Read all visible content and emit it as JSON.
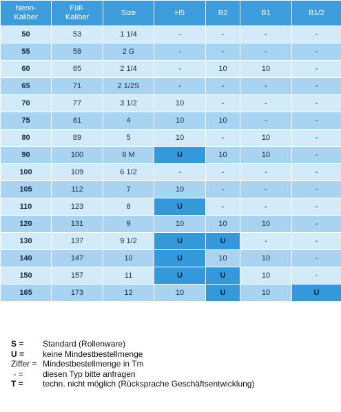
{
  "table": {
    "header": [
      "Nenn-\nKaliber",
      "Füll-\nKaliber",
      "Size",
      "H5",
      "B2",
      "B1",
      "B1/2"
    ],
    "rows": [
      [
        "50",
        "53",
        "1 1/4",
        "-",
        "-",
        "-",
        "-"
      ],
      [
        "55",
        "58",
        "2 G",
        "-",
        "-",
        "-",
        "-"
      ],
      [
        "60",
        "65",
        "2 1/4",
        "-",
        "10",
        "10",
        "-"
      ],
      [
        "65",
        "71",
        "2 1/2S",
        "-",
        "-",
        "-",
        "-"
      ],
      [
        "70",
        "77",
        "3 1/2",
        "10",
        "-",
        "-",
        "-"
      ],
      [
        "75",
        "81",
        "4",
        "10",
        "10",
        "-",
        "-"
      ],
      [
        "80",
        "89",
        "5",
        "10",
        "-",
        "10",
        "-"
      ],
      [
        "90",
        "100",
        "6 M",
        "U",
        "10",
        "10",
        "-"
      ],
      [
        "100",
        "109",
        "6 1/2",
        "-",
        "-",
        "-",
        "-"
      ],
      [
        "105",
        "112",
        "7",
        "10",
        "-",
        "-",
        "-"
      ],
      [
        "110",
        "123",
        "8",
        "U",
        "-",
        "-",
        "-"
      ],
      [
        "120",
        "131",
        "9",
        "10",
        "10",
        "10",
        "-"
      ],
      [
        "130",
        "137",
        "9 1/2",
        "U",
        "U",
        "-",
        "-"
      ],
      [
        "140",
        "147",
        "10",
        "U",
        "10",
        "10",
        "-"
      ],
      [
        "150",
        "157",
        "11",
        "U",
        "U",
        "10",
        "-"
      ],
      [
        "165",
        "173",
        "12",
        "10",
        "U",
        "10",
        "U"
      ]
    ]
  },
  "legend": [
    {
      "key": "S =",
      "text": "Standard (Rollenware)",
      "bold": true
    },
    {
      "key": "U =",
      "text": "keine Mindestbestellmenge",
      "bold": true
    },
    {
      "key": "Ziffer =",
      "text": "Mindestbestellmenge in Tm",
      "bold": false
    },
    {
      "key": " - =",
      "text": "diesen Typ bitte anfragen",
      "bold": false
    },
    {
      "key": "T =",
      "text": "techn. nicht möglich (Rücksprache Geschäftsentwicklung)",
      "bold": true
    }
  ]
}
